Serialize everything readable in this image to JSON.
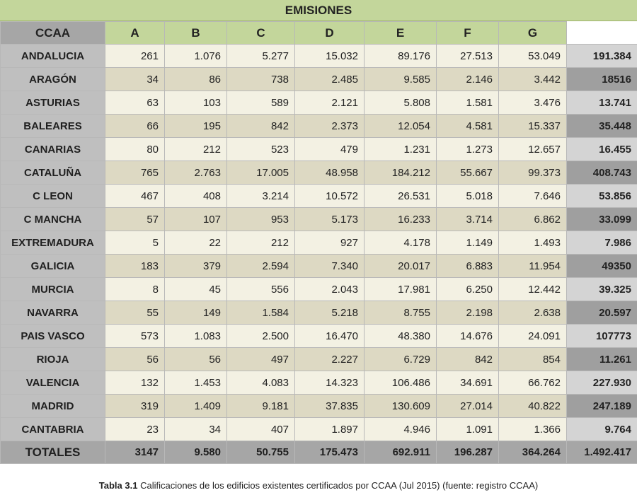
{
  "title": "EMISIONES",
  "header": {
    "ccaa": "CCAA",
    "columns": [
      "A",
      "B",
      "C",
      "D",
      "E",
      "F",
      "G"
    ]
  },
  "rows": [
    {
      "name": "ANDALUCIA",
      "values": [
        "261",
        "1.076",
        "5.277",
        "15.032",
        "89.176",
        "27.513",
        "53.049"
      ],
      "total": "191.384"
    },
    {
      "name": "ARAGÓN",
      "values": [
        "34",
        "86",
        "738",
        "2.485",
        "9.585",
        "2.146",
        "3.442"
      ],
      "total": "18516"
    },
    {
      "name": "ASTURIAS",
      "values": [
        "63",
        "103",
        "589",
        "2.121",
        "5.808",
        "1.581",
        "3.476"
      ],
      "total": "13.741"
    },
    {
      "name": "BALEARES",
      "values": [
        "66",
        "195",
        "842",
        "2.373",
        "12.054",
        "4.581",
        "15.337"
      ],
      "total": "35.448"
    },
    {
      "name": "CANARIAS",
      "values": [
        "80",
        "212",
        "523",
        "479",
        "1.231",
        "1.273",
        "12.657"
      ],
      "total": "16.455"
    },
    {
      "name": "CATALUÑA",
      "values": [
        "765",
        "2.763",
        "17.005",
        "48.958",
        "184.212",
        "55.667",
        "99.373"
      ],
      "total": "408.743"
    },
    {
      "name": "C LEON",
      "values": [
        "467",
        "408",
        "3.214",
        "10.572",
        "26.531",
        "5.018",
        "7.646"
      ],
      "total": "53.856"
    },
    {
      "name": "C MANCHA",
      "values": [
        "57",
        "107",
        "953",
        "5.173",
        "16.233",
        "3.714",
        "6.862"
      ],
      "total": "33.099"
    },
    {
      "name": "EXTREMADURA",
      "values": [
        "5",
        "22",
        "212",
        "927",
        "4.178",
        "1.149",
        "1.493"
      ],
      "total": "7.986"
    },
    {
      "name": "GALICIA",
      "values": [
        "183",
        "379",
        "2.594",
        "7.340",
        "20.017",
        "6.883",
        "11.954"
      ],
      "total": "49350"
    },
    {
      "name": "MURCIA",
      "values": [
        "8",
        "45",
        "556",
        "2.043",
        "17.981",
        "6.250",
        "12.442"
      ],
      "total": "39.325"
    },
    {
      "name": "NAVARRA",
      "values": [
        "55",
        "149",
        "1.584",
        "5.218",
        "8.755",
        "2.198",
        "2.638"
      ],
      "total": "20.597"
    },
    {
      "name": "PAIS VASCO",
      "values": [
        "573",
        "1.083",
        "2.500",
        "16.470",
        "48.380",
        "14.676",
        "24.091"
      ],
      "total": "107773"
    },
    {
      "name": "RIOJA",
      "values": [
        "56",
        "56",
        "497",
        "2.227",
        "6.729",
        "842",
        "854"
      ],
      "total": "11.261"
    },
    {
      "name": "VALENCIA",
      "values": [
        "132",
        "1.453",
        "4.083",
        "14.323",
        "106.486",
        "34.691",
        "66.762"
      ],
      "total": "227.930"
    },
    {
      "name": "MADRID",
      "values": [
        "319",
        "1.409",
        "9.181",
        "37.835",
        "130.609",
        "27.014",
        "40.822"
      ],
      "total": "247.189"
    },
    {
      "name": "CANTABRIA",
      "values": [
        "23",
        "34",
        "407",
        "1.897",
        "4.946",
        "1.091",
        "1.366"
      ],
      "total": "9.764"
    }
  ],
  "totals": {
    "label": "TOTALES",
    "values": [
      "3147",
      "9.580",
      "50.755",
      "175.473",
      "692.911",
      "196.287",
      "364.264"
    ],
    "total": "1.492.417"
  },
  "caption": {
    "label": "Tabla 3.1",
    "text": " Calificaciones de los edificios existentes certificados por CCAA (Jul 2015) (fuente: registro CCAA)"
  }
}
